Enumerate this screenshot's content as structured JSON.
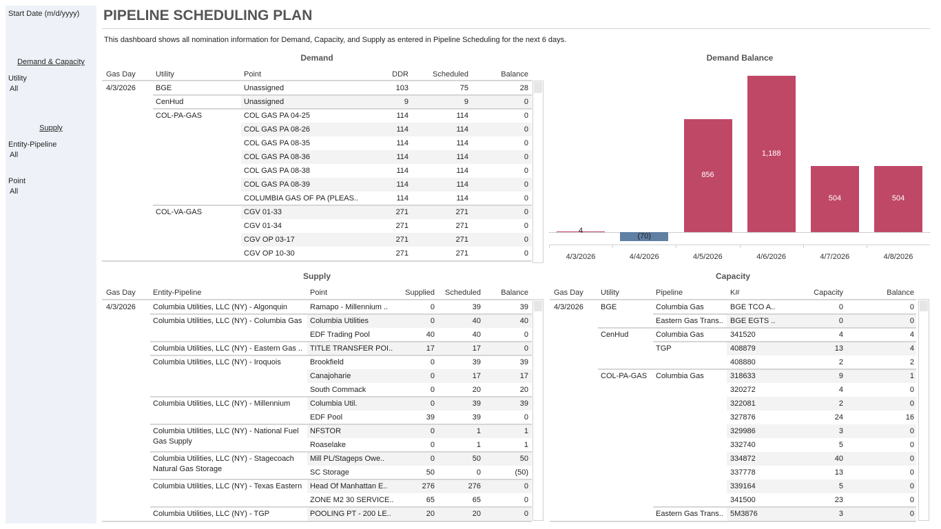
{
  "sidebar": {
    "start_date_label": "Start Date (m/d/yyyy)",
    "demand_capacity_header": "Demand & Capacity",
    "utility_label": "Utility",
    "utility_value": "All",
    "supply_header": "Supply",
    "entity_label": "Entity-Pipeline",
    "entity_value": "All",
    "point_label": "Point",
    "point_value": "All"
  },
  "header": {
    "title": "PIPELINE SCHEDULING PLAN",
    "description": "This dashboard shows all nomination information for Demand, Capacity, and Supply as entered in Pipeline Scheduling for the next 6 days."
  },
  "demand": {
    "title": "Demand",
    "columns": [
      "Gas Day",
      "Utility",
      "Point",
      "DDR",
      "Scheduled",
      "Balance"
    ],
    "rows": [
      [
        "4/3/2026",
        "BGE",
        "Unassigned",
        "103",
        "75",
        "28"
      ],
      [
        "",
        "CenHud",
        "Unassigned",
        "9",
        "9",
        "0"
      ],
      [
        "",
        "COL-PA-GAS",
        "COL GAS PA 04-25",
        "114",
        "114",
        "0"
      ],
      [
        "",
        "",
        "COL GAS PA 08-26",
        "114",
        "114",
        "0"
      ],
      [
        "",
        "",
        "COL GAS PA 08-35",
        "114",
        "114",
        "0"
      ],
      [
        "",
        "",
        "COL GAS PA 08-36",
        "114",
        "114",
        "0"
      ],
      [
        "",
        "",
        "COL GAS PA 08-38",
        "114",
        "114",
        "0"
      ],
      [
        "",
        "",
        "COL GAS PA 08-39",
        "114",
        "114",
        "0"
      ],
      [
        "",
        "",
        "COLUMBIA GAS OF PA (PLEAS..",
        "114",
        "114",
        "0"
      ],
      [
        "",
        "COL-VA-GAS",
        "CGV 01-33",
        "271",
        "271",
        "0"
      ],
      [
        "",
        "",
        "CGV 01-34",
        "271",
        "271",
        "0"
      ],
      [
        "",
        "",
        "CGV OP 03-17",
        "271",
        "271",
        "0"
      ],
      [
        "",
        "",
        "CGV OP 10-30",
        "271",
        "271",
        "0"
      ]
    ]
  },
  "supply": {
    "title": "Supply",
    "columns": [
      "Gas Day",
      "Entity-Pipeline",
      "Point",
      "Supplied",
      "Scheduled",
      "Balance"
    ],
    "rows": [
      [
        "4/3/2026",
        "Columbia Utilities, LLC (NY) - Algonquin",
        "Ramapo - Millennium ..",
        "0",
        "39",
        "39"
      ],
      [
        "",
        "Columbia Utilities, LLC (NY) - Columbia Gas",
        "Columbia Utilities",
        "0",
        "40",
        "40"
      ],
      [
        "",
        "",
        "EDF Trading Pool",
        "40",
        "40",
        "0"
      ],
      [
        "",
        "Columbia Utilities, LLC (NY) - Eastern Gas ..",
        "TITLE TRANSFER POI..",
        "17",
        "17",
        "0"
      ],
      [
        "",
        "Columbia Utilities, LLC (NY) - Iroquois",
        "Brookfield",
        "0",
        "39",
        "39"
      ],
      [
        "",
        "",
        "Canajoharie",
        "0",
        "17",
        "17"
      ],
      [
        "",
        "",
        "South Commack",
        "0",
        "20",
        "20"
      ],
      [
        "",
        "Columbia Utilities, LLC (NY) - Millennium",
        "Columbia Util.",
        "0",
        "39",
        "39"
      ],
      [
        "",
        "",
        "EDF Pool",
        "39",
        "39",
        "0"
      ],
      [
        "",
        "Columbia Utilities, LLC (NY) - National Fuel Gas Supply",
        "NFSTOR",
        "0",
        "1",
        "1"
      ],
      [
        "",
        "",
        "Roaselake",
        "0",
        "1",
        "1"
      ],
      [
        "",
        "Columbia Utilities, LLC (NY) - Stagecoach Natural Gas Storage",
        "Mill PL/Stageps Owe..",
        "0",
        "50",
        "50"
      ],
      [
        "",
        "",
        "SC Storage",
        "50",
        "0",
        "(50)"
      ],
      [
        "",
        "Columbia Utilities, LLC (NY) - Texas Eastern",
        "Head Of Manhattan E..",
        "276",
        "276",
        "0"
      ],
      [
        "",
        "",
        "ZONE M2 30 SERVICE..",
        "65",
        "65",
        "0"
      ],
      [
        "",
        "Columbia Utilities, LLC (NY) - TGP",
        "POOLING PT - 200 LE..",
        "20",
        "20",
        "0"
      ]
    ]
  },
  "capacity": {
    "title": "Capacity",
    "columns": [
      "Gas Day",
      "Utility",
      "Pipeline",
      "K#",
      "Capacity",
      "Balance"
    ],
    "rows": [
      [
        "4/3/2026",
        "BGE",
        "Columbia Gas",
        "BGE TCO A..",
        "0",
        "0"
      ],
      [
        "",
        "",
        "Eastern Gas Trans..",
        "BGE EGTS ..",
        "0",
        "0"
      ],
      [
        "",
        "CenHud",
        "Columbia Gas",
        "341520",
        "4",
        "4"
      ],
      [
        "",
        "",
        "TGP",
        "408879",
        "13",
        "4"
      ],
      [
        "",
        "",
        "",
        "408880",
        "2",
        "2"
      ],
      [
        "",
        "COL-PA-GAS",
        "Columbia Gas",
        "318633",
        "9",
        "1"
      ],
      [
        "",
        "",
        "",
        "320272",
        "4",
        "0"
      ],
      [
        "",
        "",
        "",
        "322081",
        "2",
        "0"
      ],
      [
        "",
        "",
        "",
        "327876",
        "24",
        "16"
      ],
      [
        "",
        "",
        "",
        "329986",
        "3",
        "0"
      ],
      [
        "",
        "",
        "",
        "332740",
        "5",
        "0"
      ],
      [
        "",
        "",
        "",
        "334872",
        "40",
        "0"
      ],
      [
        "",
        "",
        "",
        "337778",
        "13",
        "0"
      ],
      [
        "",
        "",
        "",
        "339164",
        "5",
        "0"
      ],
      [
        "",
        "",
        "",
        "341500",
        "23",
        "0"
      ],
      [
        "",
        "",
        "Eastern Gas Trans..",
        "5M3876",
        "3",
        "0"
      ]
    ]
  },
  "chart_data": {
    "type": "bar",
    "title": "Demand Balance",
    "categories": [
      "4/3/2026",
      "4/4/2026",
      "4/5/2026",
      "4/6/2026",
      "4/7/2026",
      "4/8/2026"
    ],
    "values": [
      4,
      -70,
      856,
      1188,
      504,
      504
    ],
    "labels": [
      "4",
      "(70)",
      "856",
      "1,188",
      "504",
      "504"
    ],
    "xlabel": "",
    "ylabel": "",
    "colors": {
      "positive": "#bf4867",
      "negative": "#5f7fa3"
    }
  }
}
